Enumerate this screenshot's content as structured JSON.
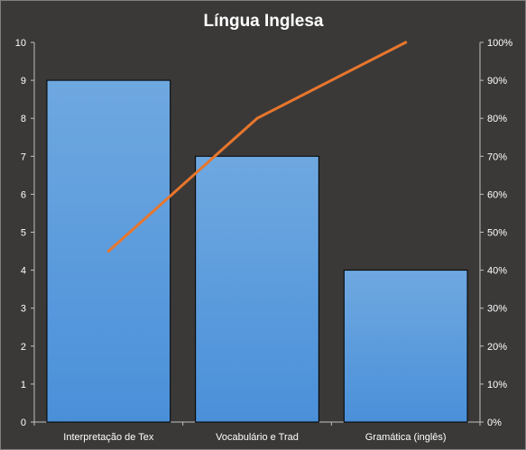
{
  "chart_data": {
    "type": "bar",
    "title": "Língua  Inglesa",
    "categories": [
      "Interpretação de Tex",
      "Vocabulário e Trad",
      "Gramática (inglês)"
    ],
    "series": [
      {
        "type": "bar",
        "values": [
          9,
          7,
          4
        ]
      },
      {
        "type": "line",
        "axis": "right",
        "values": [
          45,
          80,
          100
        ]
      }
    ],
    "ylim": [
      0,
      10
    ],
    "yticks": [
      "0",
      "1",
      "2",
      "3",
      "4",
      "5",
      "6",
      "7",
      "8",
      "9",
      "10"
    ],
    "y2lim": [
      0,
      100
    ],
    "y2ticks": [
      "0%",
      "10%",
      "20%",
      "30%",
      "40%",
      "50%",
      "60%",
      "70%",
      "80%",
      "90%",
      "100%"
    ],
    "grid": false,
    "legend": "none",
    "colors": {
      "bar": "#4a90d9",
      "bar_top": "#6fa8e0",
      "line": "#e8762c",
      "background": "#3a3938",
      "text": "#ffffff"
    }
  }
}
